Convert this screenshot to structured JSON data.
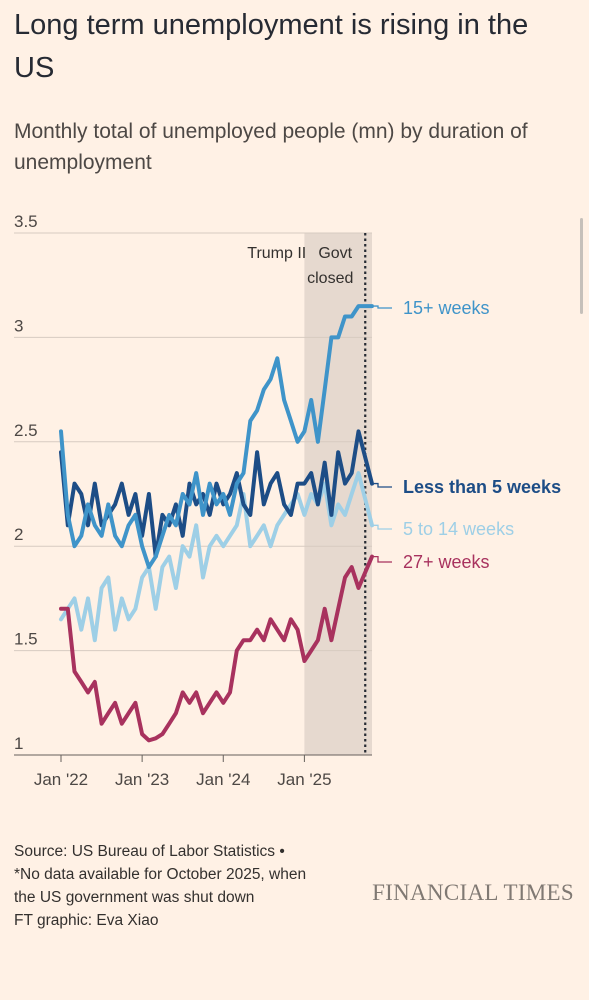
{
  "title": "Long term unemployment is rising in the US",
  "subtitle": "Monthly total of unemployed people (mn) by duration of unemployment",
  "footer": {
    "source": "Source: US Bureau of Labor Statistics •",
    "note": "*No data available for October 2025, when the US government was shut down",
    "credit": "FT graphic: Eva Xiao"
  },
  "brand": "FINANCIAL TIMES",
  "chart_data": {
    "type": "line",
    "title": "Long term unemployment is rising in the US",
    "subtitle": "Monthly total of unemployed people (mn) by duration of unemployment",
    "ylim": [
      1,
      3.5
    ],
    "yticks": [
      1,
      1.5,
      2,
      2.5,
      3,
      3.5
    ],
    "ytick_labels": [
      "1",
      "1.5",
      "2",
      "2.5",
      "3",
      "3.5"
    ],
    "xlim": [
      "2022-01",
      "2025-11"
    ],
    "xticks": [
      "2022-01",
      "2023-01",
      "2024-01",
      "2025-01"
    ],
    "xtick_labels": [
      "Jan '22",
      "Jan '23",
      "Jan '24",
      "Jan '25"
    ],
    "grid": "horizontal",
    "annotations": [
      {
        "label": "Trump II",
        "from": "2025-01",
        "to": "2025-11",
        "kind": "shaded-period"
      },
      {
        "label": "Govt closed",
        "at": "2025-10",
        "kind": "dotted-line"
      }
    ],
    "x": [
      "2022-01",
      "2022-02",
      "2022-03",
      "2022-04",
      "2022-05",
      "2022-06",
      "2022-07",
      "2022-08",
      "2022-09",
      "2022-10",
      "2022-11",
      "2022-12",
      "2023-01",
      "2023-02",
      "2023-03",
      "2023-04",
      "2023-05",
      "2023-06",
      "2023-07",
      "2023-08",
      "2023-09",
      "2023-10",
      "2023-11",
      "2023-12",
      "2024-01",
      "2024-02",
      "2024-03",
      "2024-04",
      "2024-05",
      "2024-06",
      "2024-07",
      "2024-08",
      "2024-09",
      "2024-10",
      "2024-11",
      "2024-12",
      "2025-01",
      "2025-02",
      "2025-03",
      "2025-04",
      "2025-05",
      "2025-06",
      "2025-07",
      "2025-08",
      "2025-09",
      "2025-10",
      "2025-11"
    ],
    "series": [
      {
        "name": "15+ weeks",
        "color": "#3f94c9",
        "values": [
          2.55,
          2.15,
          2.0,
          2.05,
          2.2,
          2.1,
          2.05,
          2.2,
          2.05,
          2.0,
          2.1,
          2.15,
          2.0,
          1.9,
          1.95,
          2.05,
          2.15,
          2.1,
          2.25,
          2.2,
          2.35,
          2.15,
          2.3,
          2.2,
          2.25,
          2.15,
          2.3,
          2.35,
          2.6,
          2.65,
          2.75,
          2.8,
          2.9,
          2.7,
          2.6,
          2.5,
          2.55,
          2.7,
          2.5,
          2.75,
          3.0,
          3.0,
          3.1,
          3.1,
          3.15,
          null,
          3.15
        ]
      },
      {
        "name": "Less than 5 weeks",
        "color": "#1d4d86",
        "values": [
          2.45,
          2.1,
          2.3,
          2.25,
          2.1,
          2.3,
          2.1,
          2.15,
          2.2,
          2.3,
          2.15,
          2.25,
          2.05,
          2.25,
          1.95,
          2.15,
          2.1,
          2.2,
          2.05,
          2.3,
          2.2,
          2.25,
          2.15,
          2.3,
          2.2,
          2.25,
          2.35,
          2.2,
          2.15,
          2.45,
          2.2,
          2.3,
          2.35,
          2.2,
          2.15,
          2.3,
          2.3,
          2.35,
          2.2,
          2.4,
          2.15,
          2.45,
          2.3,
          2.35,
          2.55,
          null,
          2.3
        ]
      },
      {
        "name": "5 to 14 weeks",
        "color": "#9ecfe6",
        "values": [
          1.65,
          1.7,
          1.75,
          1.6,
          1.75,
          1.55,
          1.8,
          1.85,
          1.6,
          1.75,
          1.65,
          1.7,
          1.85,
          1.9,
          1.7,
          1.9,
          1.95,
          1.8,
          2.0,
          1.95,
          2.1,
          1.85,
          2.0,
          2.05,
          2.0,
          2.05,
          2.1,
          2.25,
          2.0,
          2.05,
          2.1,
          2.0,
          2.1,
          2.15,
          2.2,
          2.25,
          2.15,
          2.25,
          2.2,
          2.3,
          2.1,
          2.2,
          2.15,
          2.25,
          2.35,
          null,
          2.1
        ]
      },
      {
        "name": "27+ weeks",
        "color": "#a8325e",
        "values": [
          1.7,
          1.7,
          1.4,
          1.35,
          1.3,
          1.35,
          1.15,
          1.2,
          1.25,
          1.15,
          1.2,
          1.25,
          1.1,
          1.07,
          1.08,
          1.1,
          1.15,
          1.2,
          1.3,
          1.25,
          1.3,
          1.2,
          1.25,
          1.3,
          1.25,
          1.3,
          1.5,
          1.55,
          1.55,
          1.6,
          1.55,
          1.65,
          1.6,
          1.55,
          1.65,
          1.6,
          1.45,
          1.5,
          1.55,
          1.7,
          1.55,
          1.7,
          1.85,
          1.9,
          1.8,
          null,
          1.95
        ]
      }
    ]
  }
}
